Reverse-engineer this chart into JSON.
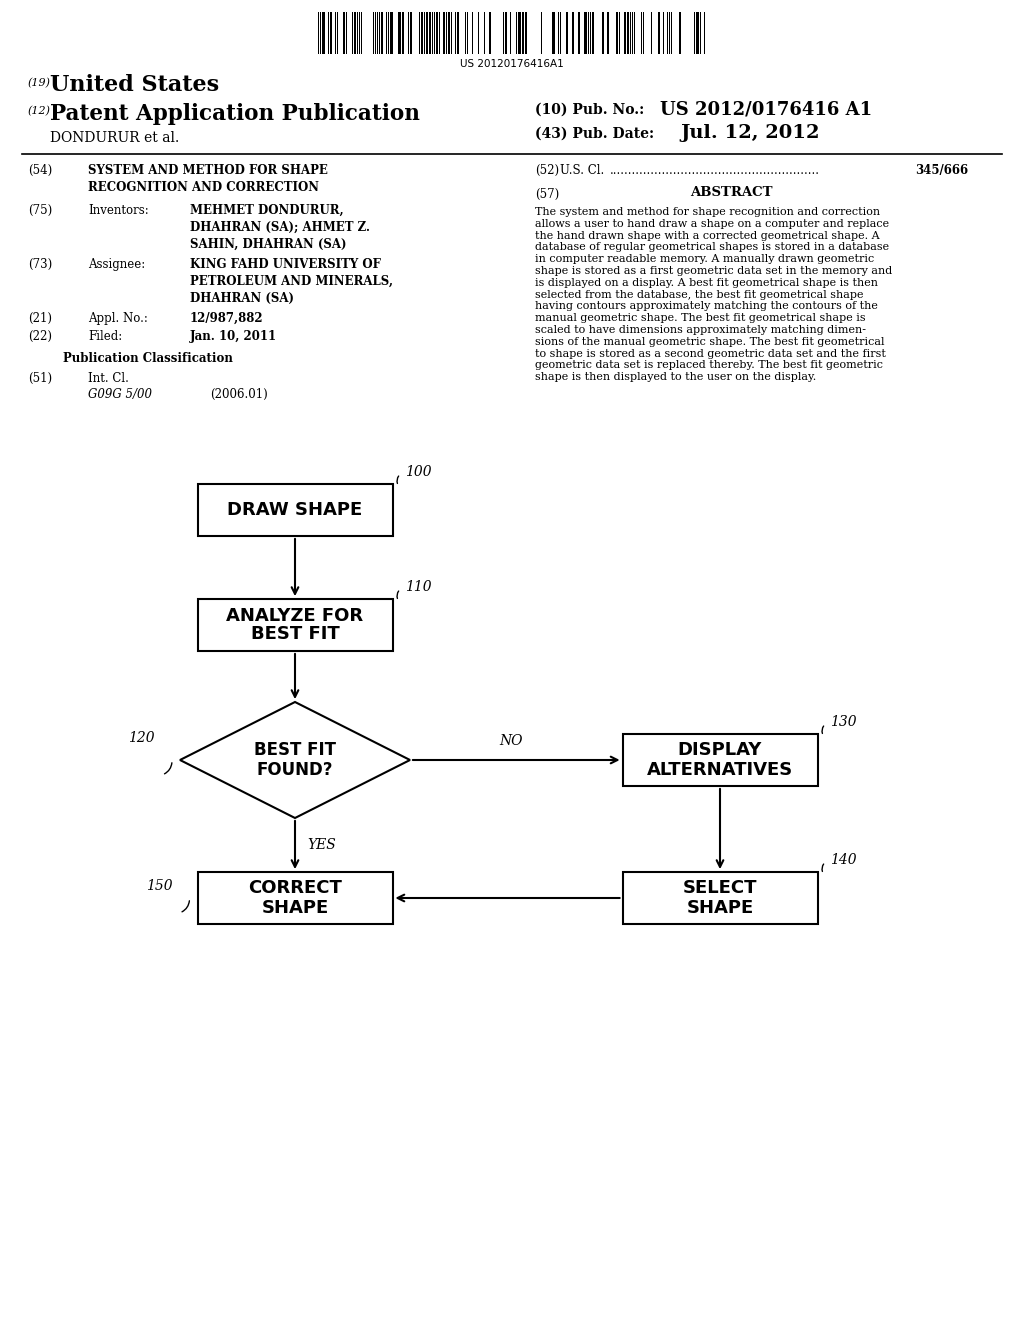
{
  "background_color": "#ffffff",
  "barcode_text": "US 20120176416A1",
  "patent_number_label": "(19)",
  "patent_number_text": "United States",
  "pub_label": "(12)",
  "pub_text": "Patent Application Publication",
  "pub_no_label": "(10) Pub. No.:",
  "pub_no_value": "US 2012/0176416 A1",
  "pub_date_label": "(43) Pub. Date:",
  "pub_date_value": "Jul. 12, 2012",
  "assignee_line": "DONDURUR et al.",
  "title_num": "(54)",
  "title_text": "SYSTEM AND METHOD FOR SHAPE\nRECOGNITION AND CORRECTION",
  "inventors_num": "(75)",
  "inventors_label": "Inventors:",
  "inventors_text": "MEHMET DONDURUR,\nDHAHRAN (SA); AHMET Z.\nSAHIN, DHAHRAN (SA)",
  "assignee_num": "(73)",
  "assignee_label": "Assignee:",
  "assignee_text": "KING FAHD UNIVERSITY OF\nPETROLEUM AND MINERALS,\nDHAHRAN (SA)",
  "appl_num": "(21)",
  "appl_label": "Appl. No.:",
  "appl_value": "12/987,882",
  "filed_num": "(22)",
  "filed_label": "Filed:",
  "filed_value": "Jan. 10, 2011",
  "pub_class_header": "Publication Classification",
  "int_cl_num": "(51)",
  "int_cl_label": "Int. Cl.",
  "int_cl_value": "G09G 5/00",
  "int_cl_year": "(2006.01)",
  "us_cl_num": "(52)",
  "us_cl_label": "U.S. Cl.",
  "us_cl_dots": "........................................................",
  "us_cl_value": "345/666",
  "abstract_num": "(57)",
  "abstract_header": "ABSTRACT",
  "abstract_lines": [
    "The system and method for shape recognition and correction",
    "allows a user to hand draw a shape on a computer and replace",
    "the hand drawn shape with a corrected geometrical shape. A",
    "database of regular geometrical shapes is stored in a database",
    "in computer readable memory. A manually drawn geometric",
    "shape is stored as a first geometric data set in the memory and",
    "is displayed on a display. A best fit geometrical shape is then",
    "selected from the database, the best fit geometrical shape",
    "having contours approximately matching the contours of the",
    "manual geometric shape. The best fit geometrical shape is",
    "scaled to have dimensions approximately matching dimen-",
    "sions of the manual geometric shape. The best fit geometrical",
    "to shape is stored as a second geometric data set and the first",
    "geometric data set is replaced thereby. The best fit geometric",
    "shape is then displayed to the user on the display."
  ],
  "node_100": "100",
  "node_110": "110",
  "node_120": "120",
  "node_130": "130",
  "node_140": "140",
  "node_150": "150",
  "box_draw_shape": "DRAW SHAPE",
  "box_analyze_line1": "ANALYZE FOR",
  "box_analyze_line2": "BEST FIT",
  "diamond_line1": "BEST FIT",
  "diamond_line2": "FOUND?",
  "no_label": "NO",
  "yes_label": "YES",
  "box_display_alt_line1": "DISPLAY",
  "box_display_alt_line2": "ALTERNATIVES",
  "box_select_line1": "SELECT",
  "box_select_line2": "SHAPE",
  "box_correct_line1": "CORRECT",
  "box_correct_line2": "SHAPE"
}
